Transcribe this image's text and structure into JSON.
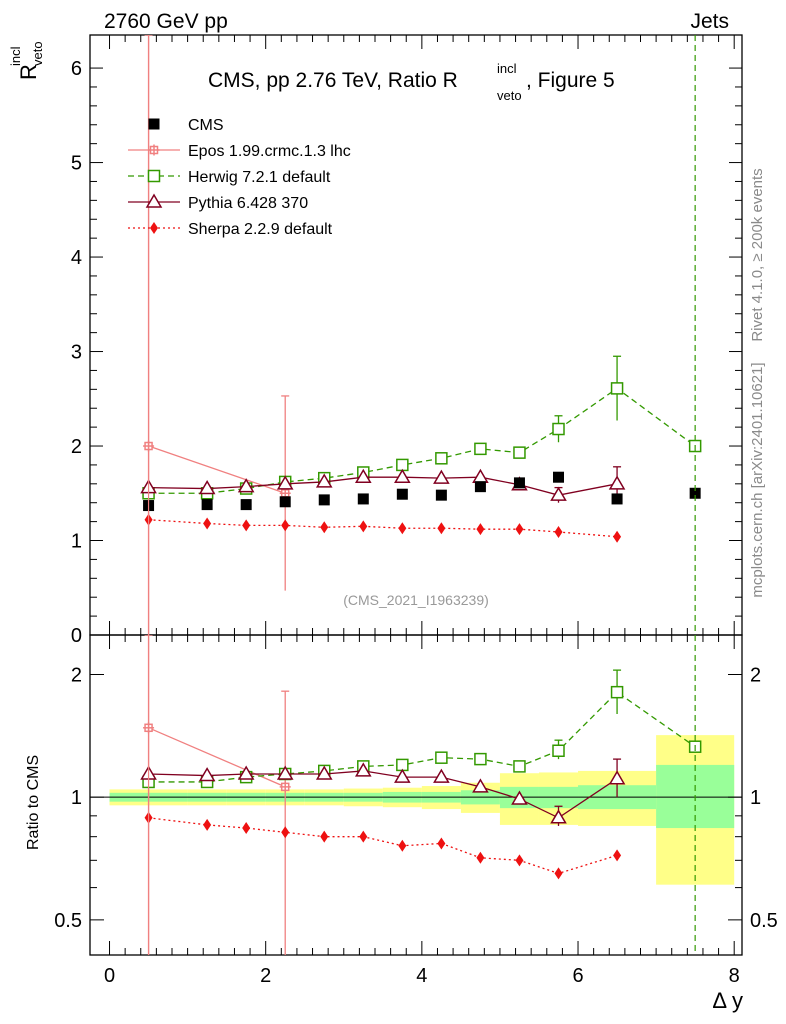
{
  "header": {
    "left": "2760 GeV pp",
    "right": "Jets"
  },
  "side": {
    "rivet": "Rivet 4.1.0, ≥ 200k events",
    "mcplots": "mcplots.cern.ch [arXiv:2401.10621]"
  },
  "title": {
    "main": "CMS, pp 2.76 TeV, Ratio R",
    "sup": "incl",
    "sub": "veto",
    "tail": ", Figure 5"
  },
  "ylabel_top": {
    "base": "R",
    "sup": "incl",
    "sub": "veto"
  },
  "ylabel_bottom": "Ratio to CMS",
  "xlabel": "Δ y",
  "watermark": "(CMS_2021_I1963239)",
  "colors": {
    "cms": "#000000",
    "epos": "#f08080",
    "herwig": "#339900",
    "pythia": "#800020",
    "sherpa": "#ee1111",
    "band_green": "#99ff99",
    "band_yellow": "#ffff88"
  },
  "chart_data": [
    {
      "type": "scatter",
      "panel": "main",
      "xlabel": "Δ y",
      "ylabel": "R_veto^incl",
      "xlim": [
        -0.25,
        8.1
      ],
      "ylim": [
        0,
        6.35
      ],
      "yticks": [
        "0",
        "1",
        "2",
        "3",
        "4",
        "5",
        "6"
      ],
      "xticks": [
        "0",
        "2",
        "4",
        "6",
        "8"
      ],
      "series": [
        {
          "key": "cms",
          "name": "CMS",
          "style": "data",
          "x": [
            0.5,
            1.25,
            1.75,
            2.25,
            2.75,
            3.25,
            3.75,
            4.25,
            4.75,
            5.25,
            5.75,
            6.5,
            7.5
          ],
          "y": [
            1.37,
            1.38,
            1.38,
            1.41,
            1.43,
            1.44,
            1.49,
            1.48,
            1.57,
            1.61,
            1.67,
            1.44,
            1.5
          ]
        },
        {
          "key": "epos",
          "name": "Epos 1.99.crmc.1.3 lhc",
          "style": "solid",
          "x": [
            0.5,
            2.25
          ],
          "y": [
            2.0,
            1.5
          ],
          "err": [
            [
              0.5,
              0,
              6.35
            ],
            [
              2.25,
              0.47,
              2.53
            ]
          ]
        },
        {
          "key": "herwig",
          "name": "Herwig 7.2.1 default",
          "style": "dashed",
          "x": [
            0.5,
            1.25,
            1.75,
            2.25,
            2.75,
            3.25,
            3.75,
            4.25,
            4.75,
            5.25,
            5.75,
            6.5,
            7.5
          ],
          "y": [
            1.5,
            1.5,
            1.55,
            1.62,
            1.66,
            1.72,
            1.8,
            1.87,
            1.97,
            1.93,
            2.18,
            2.61,
            2.0
          ],
          "err": [
            [
              5.75,
              2.04,
              2.32
            ],
            [
              6.5,
              2.27,
              2.95
            ]
          ]
        },
        {
          "key": "pythia",
          "name": "Pythia 6.428 370",
          "style": "solid",
          "x": [
            0.5,
            1.25,
            1.75,
            2.25,
            2.75,
            3.25,
            3.75,
            4.25,
            4.75,
            5.25,
            5.75,
            6.5
          ],
          "y": [
            1.56,
            1.55,
            1.57,
            1.6,
            1.62,
            1.67,
            1.67,
            1.66,
            1.67,
            1.59,
            1.48,
            1.6
          ],
          "err": [
            [
              5.75,
              1.4,
              1.56
            ],
            [
              6.5,
              1.42,
              1.78
            ]
          ]
        },
        {
          "key": "sherpa",
          "name": "Sherpa 2.2.9 default",
          "style": "dotted",
          "x": [
            0.5,
            1.25,
            1.75,
            2.25,
            2.75,
            3.25,
            3.75,
            4.25,
            4.75,
            5.25,
            5.75,
            6.5
          ],
          "y": [
            1.22,
            1.18,
            1.16,
            1.16,
            1.14,
            1.15,
            1.13,
            1.13,
            1.12,
            1.12,
            1.09,
            1.04
          ]
        }
      ]
    },
    {
      "type": "scatter",
      "panel": "ratio",
      "ylabel": "Ratio to CMS",
      "xlabel": "Δ y",
      "xlim": [
        -0.25,
        8.1
      ],
      "ylim": [
        0.41,
        2.5
      ],
      "scale": "log",
      "yticks_labeled": [
        [
          "0.5",
          0.5
        ],
        [
          "1",
          1
        ],
        [
          "2",
          2
        ]
      ],
      "xticks": [
        "0",
        "2",
        "4",
        "6",
        "8"
      ],
      "bands": [
        {
          "x0": 0,
          "x1": 1,
          "green": [
            0.975,
            1.025
          ],
          "yellow": [
            0.955,
            1.045
          ]
        },
        {
          "x0": 1,
          "x1": 1.5,
          "green": [
            0.975,
            1.025
          ],
          "yellow": [
            0.955,
            1.045
          ]
        },
        {
          "x0": 1.5,
          "x1": 2,
          "green": [
            0.975,
            1.025
          ],
          "yellow": [
            0.955,
            1.045
          ]
        },
        {
          "x0": 2,
          "x1": 2.5,
          "green": [
            0.975,
            1.025
          ],
          "yellow": [
            0.955,
            1.045
          ]
        },
        {
          "x0": 2.5,
          "x1": 3,
          "green": [
            0.975,
            1.025
          ],
          "yellow": [
            0.955,
            1.045
          ]
        },
        {
          "x0": 3,
          "x1": 3.5,
          "green": [
            0.975,
            1.025
          ],
          "yellow": [
            0.95,
            1.05
          ]
        },
        {
          "x0": 3.5,
          "x1": 4,
          "green": [
            0.97,
            1.03
          ],
          "yellow": [
            0.945,
            1.055
          ]
        },
        {
          "x0": 4,
          "x1": 4.5,
          "green": [
            0.97,
            1.03
          ],
          "yellow": [
            0.935,
            1.065
          ]
        },
        {
          "x0": 4.5,
          "x1": 5,
          "green": [
            0.96,
            1.04
          ],
          "yellow": [
            0.915,
            1.085
          ]
        },
        {
          "x0": 5,
          "x1": 5.5,
          "green": [
            0.94,
            1.06
          ],
          "yellow": [
            0.855,
            1.145
          ]
        },
        {
          "x0": 5.5,
          "x1": 6,
          "green": [
            0.94,
            1.06
          ],
          "yellow": [
            0.855,
            1.15
          ]
        },
        {
          "x0": 6,
          "x1": 7,
          "green": [
            0.935,
            1.07
          ],
          "yellow": [
            0.85,
            1.16
          ]
        },
        {
          "x0": 7,
          "x1": 8,
          "green": [
            0.84,
            1.2
          ],
          "yellow": [
            0.61,
            1.42
          ]
        }
      ],
      "series": [
        {
          "key": "epos",
          "x": [
            0.5,
            2.25
          ],
          "y": [
            1.48,
            1.06
          ],
          "err": [
            [
              0.5,
              0.3,
              2.5
            ],
            [
              2.25,
              0.3,
              1.82
            ]
          ]
        },
        {
          "key": "herwig",
          "x": [
            0.5,
            1.25,
            1.75,
            2.25,
            2.75,
            3.25,
            3.75,
            4.25,
            4.75,
            5.25,
            5.75,
            6.5,
            7.5
          ],
          "y": [
            1.09,
            1.09,
            1.12,
            1.14,
            1.16,
            1.19,
            1.2,
            1.25,
            1.24,
            1.19,
            1.3,
            1.81,
            1.33
          ],
          "err": [
            [
              5.75,
              1.24,
              1.38
            ],
            [
              6.5,
              1.6,
              2.05
            ]
          ]
        },
        {
          "key": "pythia",
          "x": [
            0.5,
            1.25,
            1.75,
            2.25,
            2.75,
            3.25,
            3.75,
            4.25,
            4.75,
            5.25,
            5.75,
            6.5
          ],
          "y": [
            1.14,
            1.13,
            1.14,
            1.14,
            1.14,
            1.16,
            1.12,
            1.12,
            1.06,
            0.99,
            0.89,
            1.11
          ],
          "err": [
            [
              5.75,
              0.85,
              0.95
            ],
            [
              6.5,
              1.0,
              1.24
            ]
          ]
        },
        {
          "key": "sherpa",
          "x": [
            0.5,
            1.25,
            1.75,
            2.25,
            2.75,
            3.25,
            3.75,
            4.25,
            4.75,
            5.25,
            5.75,
            6.5
          ],
          "y": [
            0.89,
            0.855,
            0.84,
            0.82,
            0.8,
            0.8,
            0.76,
            0.77,
            0.71,
            0.7,
            0.65,
            0.72
          ]
        }
      ]
    }
  ]
}
